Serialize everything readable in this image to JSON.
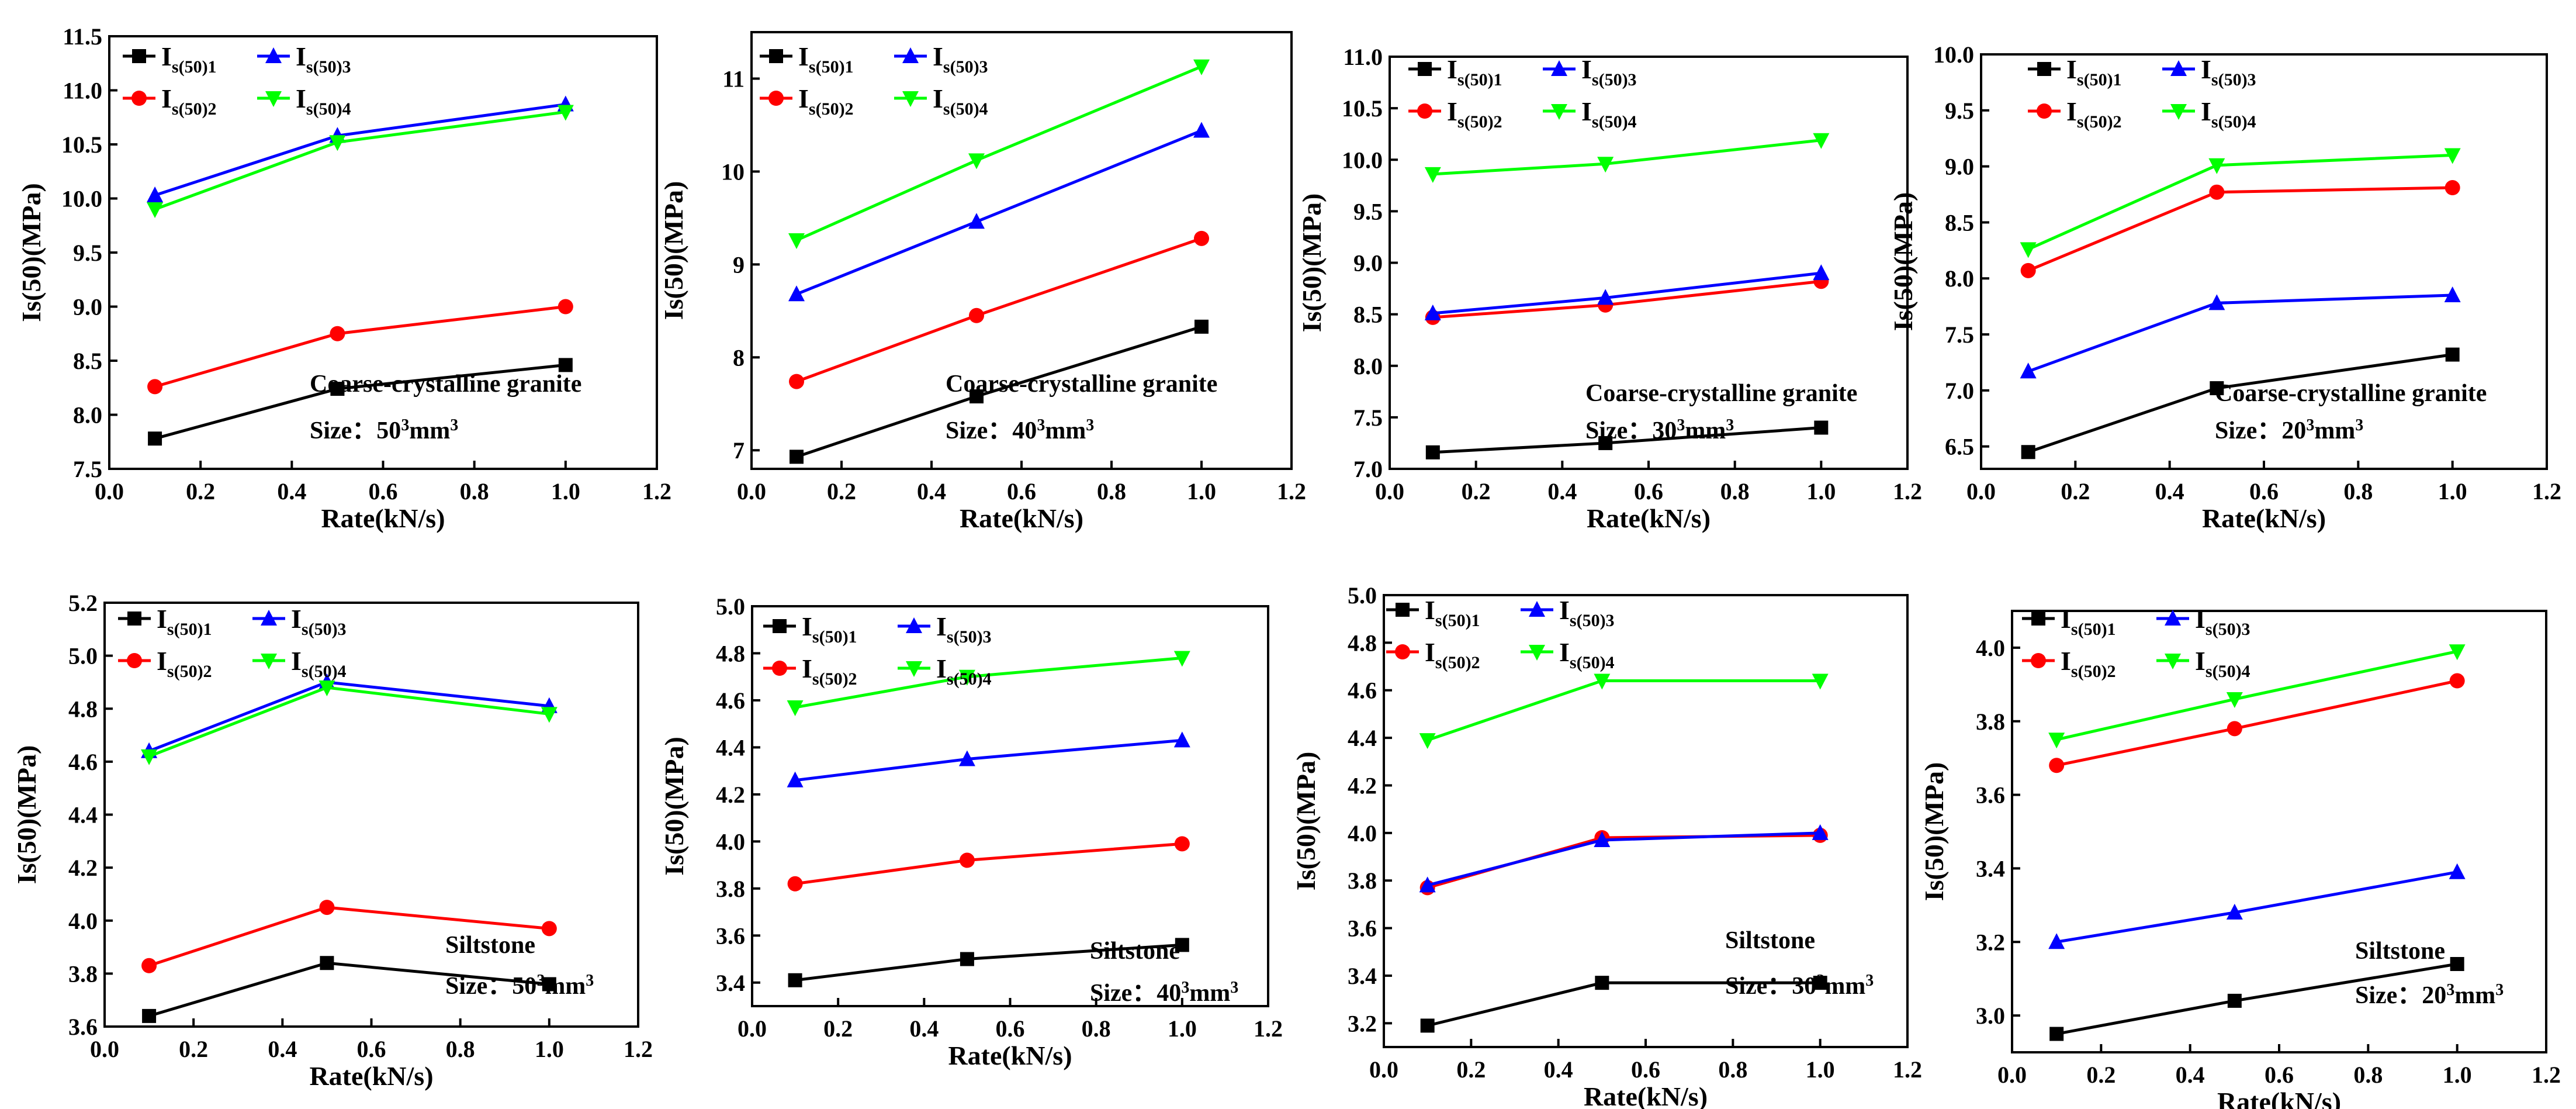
{
  "figure": {
    "colors": {
      "Is(50)1": "#000000",
      "Is(50)2": "#ff0000",
      "Is(50)3": "#0000ff",
      "Is(50)4": "#00ff00"
    },
    "markers": {
      "Is(50)1": "square",
      "Is(50)2": "circle",
      "Is(50)3": "triangle-up",
      "Is(50)4": "triangle-down"
    }
  },
  "chart_data": [
    {
      "type": "line",
      "material": "Coarse-crystalline granite",
      "size_text": "Size：50³mm³",
      "xlabel": "Rate(kN/s)",
      "ylabel": "Is(50)(MPa)",
      "xlim": [
        0.0,
        1.2
      ],
      "xticks": [
        "0.0",
        "0.2",
        "0.4",
        "0.6",
        "0.8",
        "1.0",
        "1.2"
      ],
      "ylim": [
        7.5,
        11.5
      ],
      "yticks": [
        "7.5",
        "8.0",
        "8.5",
        "9.0",
        "9.5",
        "10.0",
        "10.5",
        "11.0",
        "11.5"
      ],
      "x": [
        0.1,
        0.5,
        1.0
      ],
      "series": [
        {
          "name": "Is(50)1",
          "values": [
            7.78,
            8.24,
            8.46
          ]
        },
        {
          "name": "Is(50)2",
          "values": [
            8.26,
            8.75,
            9.0
          ]
        },
        {
          "name": "Is(50)3",
          "values": [
            10.03,
            10.58,
            10.87
          ]
        },
        {
          "name": "Is(50)4",
          "values": [
            9.9,
            10.52,
            10.8
          ]
        }
      ],
      "legend": "top-left"
    },
    {
      "type": "line",
      "material": "Coarse-crystalline granite",
      "size_text": "Size：40³mm³",
      "xlabel": "Rate(kN/s)",
      "ylabel": "Is(50)(MPa)",
      "xlim": [
        0.0,
        1.2
      ],
      "xticks": [
        "0.0",
        "0.2",
        "0.4",
        "0.6",
        "0.8",
        "1.0",
        "1.2"
      ],
      "ylim": [
        6.8,
        11.5
      ],
      "yticks": [
        "7",
        "8",
        "9",
        "10",
        "11"
      ],
      "x": [
        0.1,
        0.5,
        1.0
      ],
      "series": [
        {
          "name": "Is(50)1",
          "values": [
            6.93,
            7.58,
            8.33
          ]
        },
        {
          "name": "Is(50)2",
          "values": [
            7.74,
            8.45,
            9.28
          ]
        },
        {
          "name": "Is(50)3",
          "values": [
            8.68,
            9.46,
            10.44
          ]
        },
        {
          "name": "Is(50)4",
          "values": [
            9.26,
            10.12,
            11.13
          ]
        }
      ],
      "legend": "top-left"
    },
    {
      "type": "line",
      "material": "Coarse-crystalline granite",
      "size_text": "Size：30³mm³",
      "xlabel": "Rate(kN/s)",
      "ylabel": "Is(50)(MPa)",
      "xlim": [
        0.0,
        1.2
      ],
      "xticks": [
        "0.0",
        "0.2",
        "0.4",
        "0.6",
        "0.8",
        "1.0",
        "1.2"
      ],
      "ylim": [
        7.0,
        11.0
      ],
      "yticks": [
        "7.0",
        "7.5",
        "8.0",
        "8.5",
        "9.0",
        "9.5",
        "10.0",
        "10.5",
        "11.0"
      ],
      "x": [
        0.1,
        0.5,
        1.0
      ],
      "series": [
        {
          "name": "Is(50)1",
          "values": [
            7.16,
            7.25,
            7.4
          ]
        },
        {
          "name": "Is(50)2",
          "values": [
            8.47,
            8.59,
            8.82
          ]
        },
        {
          "name": "Is(50)3",
          "values": [
            8.51,
            8.66,
            8.9
          ]
        },
        {
          "name": "Is(50)4",
          "values": [
            9.86,
            9.96,
            10.19
          ]
        }
      ],
      "legend": "top-left"
    },
    {
      "type": "line",
      "material": "Coarse-crystalline granite",
      "size_text": "Size：20³mm³",
      "xlabel": "Rate(kN/s)",
      "ylabel": "Is(50)(MPa)",
      "xlim": [
        0.0,
        1.2
      ],
      "xticks": [
        "0.0",
        "0.2",
        "0.4",
        "0.6",
        "0.8",
        "1.0",
        "1.2"
      ],
      "ylim": [
        6.3,
        10.0
      ],
      "yticks": [
        "6.5",
        "7.0",
        "7.5",
        "8.0",
        "8.5",
        "9.0",
        "9.5",
        "10.0"
      ],
      "x": [
        0.1,
        0.5,
        1.0
      ],
      "series": [
        {
          "name": "Is(50)1",
          "values": [
            6.45,
            7.02,
            7.32
          ]
        },
        {
          "name": "Is(50)2",
          "values": [
            8.07,
            8.77,
            8.81
          ]
        },
        {
          "name": "Is(50)3",
          "values": [
            7.17,
            7.78,
            7.85
          ]
        },
        {
          "name": "Is(50)4",
          "values": [
            8.26,
            9.01,
            9.1
          ]
        }
      ],
      "legend": "top-left"
    },
    {
      "type": "line",
      "material": "Siltstone",
      "size_text": "Size：50³mm³",
      "xlabel": "Rate(kN/s)",
      "ylabel": "Is(50)(MPa)",
      "xlim": [
        0.0,
        1.2
      ],
      "xticks": [
        "0.0",
        "0.2",
        "0.4",
        "0.6",
        "0.8",
        "1.0",
        "1.2"
      ],
      "ylim": [
        3.6,
        5.2
      ],
      "yticks": [
        "3.6",
        "3.8",
        "4.0",
        "4.2",
        "4.4",
        "4.6",
        "4.8",
        "5.0",
        "5.2"
      ],
      "x": [
        0.1,
        0.5,
        1.0
      ],
      "series": [
        {
          "name": "Is(50)1",
          "values": [
            3.64,
            3.84,
            3.76
          ]
        },
        {
          "name": "Is(50)2",
          "values": [
            3.83,
            4.05,
            3.97
          ]
        },
        {
          "name": "Is(50)3",
          "values": [
            4.64,
            4.9,
            4.81
          ]
        },
        {
          "name": "Is(50)4",
          "values": [
            4.62,
            4.88,
            4.78
          ]
        }
      ],
      "legend": "top-left"
    },
    {
      "type": "line",
      "material": "Siltstone",
      "size_text": "Size：40³mm³",
      "xlabel": "Rate(kN/s)",
      "ylabel": "Is(50)(MPa)",
      "xlim": [
        0.0,
        1.2
      ],
      "xticks": [
        "0.0",
        "0.2",
        "0.4",
        "0.6",
        "0.8",
        "1.0",
        "1.2"
      ],
      "ylim": [
        3.3,
        5.0
      ],
      "yticks": [
        "3.4",
        "3.6",
        "3.8",
        "4.0",
        "4.2",
        "4.4",
        "4.6",
        "4.8",
        "5.0"
      ],
      "x": [
        0.1,
        0.5,
        1.0
      ],
      "series": [
        {
          "name": "Is(50)1",
          "values": [
            3.41,
            3.5,
            3.56
          ]
        },
        {
          "name": "Is(50)2",
          "values": [
            3.82,
            3.92,
            3.99
          ]
        },
        {
          "name": "Is(50)3",
          "values": [
            4.26,
            4.35,
            4.43
          ]
        },
        {
          "name": "Is(50)4",
          "values": [
            4.57,
            4.7,
            4.78
          ]
        }
      ],
      "legend": "top-left"
    },
    {
      "type": "line",
      "material": "Siltstone",
      "size_text": "Size：30³mm³",
      "xlabel": "Rate(kN/s)",
      "ylabel": "Is(50)(MPa)",
      "xlim": [
        0.0,
        1.2
      ],
      "xticks": [
        "0.0",
        "0.2",
        "0.4",
        "0.6",
        "0.8",
        "1.0",
        "1.2"
      ],
      "ylim": [
        3.1,
        5.0
      ],
      "yticks": [
        "3.2",
        "3.4",
        "3.6",
        "3.8",
        "4.0",
        "4.2",
        "4.4",
        "4.6",
        "4.8",
        "5.0"
      ],
      "x": [
        0.1,
        0.5,
        1.0
      ],
      "series": [
        {
          "name": "Is(50)1",
          "values": [
            3.19,
            3.37,
            3.37
          ]
        },
        {
          "name": "Is(50)2",
          "values": [
            3.77,
            3.98,
            3.99
          ]
        },
        {
          "name": "Is(50)3",
          "values": [
            3.78,
            3.97,
            4.0
          ]
        },
        {
          "name": "Is(50)4",
          "values": [
            4.39,
            4.64,
            4.64
          ]
        }
      ],
      "legend": "top-left"
    },
    {
      "type": "line",
      "material": "Siltstone",
      "size_text": "Size：20³mm³",
      "xlabel": "Rate(kN/s)",
      "ylabel": "Is(50)(MPa)",
      "xlim": [
        0.0,
        1.2
      ],
      "xticks": [
        "0.0",
        "0.2",
        "0.4",
        "0.6",
        "0.8",
        "1.0",
        "1.2"
      ],
      "ylim": [
        2.9,
        4.1
      ],
      "yticks": [
        "3.0",
        "3.2",
        "3.4",
        "3.6",
        "3.8",
        "4.0"
      ],
      "x": [
        0.1,
        0.5,
        1.0
      ],
      "series": [
        {
          "name": "Is(50)1",
          "values": [
            2.95,
            3.04,
            3.14
          ]
        },
        {
          "name": "Is(50)2",
          "values": [
            3.68,
            3.78,
            3.91
          ]
        },
        {
          "name": "Is(50)3",
          "values": [
            3.2,
            3.28,
            3.39
          ]
        },
        {
          "name": "Is(50)4",
          "values": [
            3.75,
            3.86,
            3.99
          ]
        }
      ],
      "legend": "top-left"
    }
  ]
}
